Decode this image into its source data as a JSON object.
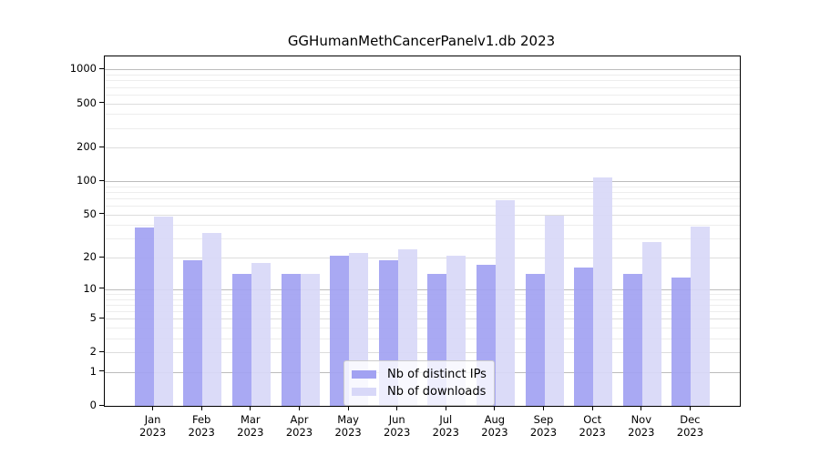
{
  "chart_data": {
    "type": "bar",
    "title": "GGHumanMethCancerPanelv1.db 2023",
    "yscale": "log1p",
    "grid": true,
    "legend_position": "lower-center-inside",
    "categories": [
      "Jan",
      "Feb",
      "Mar",
      "Apr",
      "May",
      "Jun",
      "Jul",
      "Aug",
      "Sep",
      "Oct",
      "Nov",
      "Dec"
    ],
    "x_tick_line2": "2023",
    "yticks": [
      0,
      1,
      2,
      5,
      10,
      20,
      50,
      100,
      200,
      500,
      1000
    ],
    "ylim": [
      0,
      1310
    ],
    "series": [
      {
        "name": "Nb of distinct IPs",
        "color": "#a2a2f2",
        "values": [
          38,
          19,
          14,
          14,
          21,
          19,
          14,
          17,
          14,
          16,
          14,
          13
        ]
      },
      {
        "name": "Nb of downloads",
        "color": "#d8d8f8",
        "values": [
          48,
          34,
          18,
          14,
          22,
          24,
          21,
          67,
          49,
          109,
          28,
          39
        ]
      }
    ]
  },
  "colors": {
    "background": "#ffffff",
    "spine": "#000000",
    "grid_major": "#bcbcbc",
    "grid_minor": "#dddddd",
    "grid_micro": "#ededed",
    "text": "#000000"
  }
}
